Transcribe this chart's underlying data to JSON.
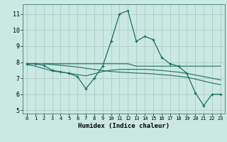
{
  "xlabel": "Humidex (Indice chaleur)",
  "background_color": "#cbe9e3",
  "grid_color": "#b0ccc8",
  "line_color": "#1a6e62",
  "xlim": [
    -0.5,
    23.5
  ],
  "ylim": [
    4.8,
    11.6
  ],
  "yticks": [
    5,
    6,
    7,
    8,
    9,
    10,
    11
  ],
  "xticks": [
    0,
    1,
    2,
    3,
    4,
    5,
    6,
    7,
    8,
    9,
    10,
    11,
    12,
    13,
    14,
    15,
    16,
    17,
    18,
    19,
    20,
    21,
    22,
    23
  ],
  "lines": [
    {
      "x": [
        0,
        1,
        2,
        3,
        4,
        5,
        6,
        7,
        8,
        9,
        10,
        11,
        12,
        13,
        14,
        15,
        16,
        17,
        18,
        19,
        20,
        21,
        22,
        23
      ],
      "y": [
        7.9,
        7.9,
        7.8,
        7.5,
        7.4,
        7.3,
        7.1,
        6.35,
        7.0,
        7.75,
        9.3,
        11.0,
        11.2,
        9.3,
        9.6,
        9.4,
        8.3,
        7.9,
        7.75,
        7.3,
        6.1,
        5.3,
        6.0,
        6.0
      ],
      "markers": true
    },
    {
      "x": [
        0,
        1,
        2,
        3,
        4,
        5,
        6,
        7,
        8,
        9,
        10,
        11,
        12,
        13,
        14,
        15,
        16,
        17,
        18,
        19,
        20,
        21,
        22,
        23
      ],
      "y": [
        7.9,
        7.9,
        7.9,
        7.9,
        7.9,
        7.9,
        7.9,
        7.9,
        7.9,
        7.9,
        7.9,
        7.9,
        7.9,
        7.75,
        7.75,
        7.75,
        7.75,
        7.75,
        7.75,
        7.75,
        7.75,
        7.75,
        7.75,
        7.75
      ],
      "markers": false
    },
    {
      "x": [
        0,
        1,
        2,
        3,
        4,
        5,
        6,
        7,
        8,
        9,
        10,
        11,
        12,
        13,
        14,
        15,
        16,
        17,
        18,
        19,
        20,
        21,
        22,
        23
      ],
      "y": [
        7.85,
        7.75,
        7.6,
        7.45,
        7.38,
        7.32,
        7.22,
        7.15,
        7.28,
        7.42,
        7.5,
        7.55,
        7.55,
        7.55,
        7.55,
        7.52,
        7.48,
        7.43,
        7.38,
        7.3,
        7.2,
        7.1,
        7.0,
        6.9
      ],
      "markers": false
    },
    {
      "x": [
        2,
        3,
        4,
        5,
        6,
        7,
        8,
        9,
        10,
        11,
        12,
        13,
        14,
        15,
        16,
        17,
        18,
        19,
        20,
        21,
        22,
        23
      ],
      "y": [
        7.9,
        7.85,
        7.8,
        7.75,
        7.7,
        7.62,
        7.55,
        7.48,
        7.42,
        7.38,
        7.35,
        7.32,
        7.3,
        7.27,
        7.22,
        7.18,
        7.12,
        7.06,
        6.95,
        6.82,
        6.7,
        6.6
      ],
      "markers": false
    }
  ]
}
